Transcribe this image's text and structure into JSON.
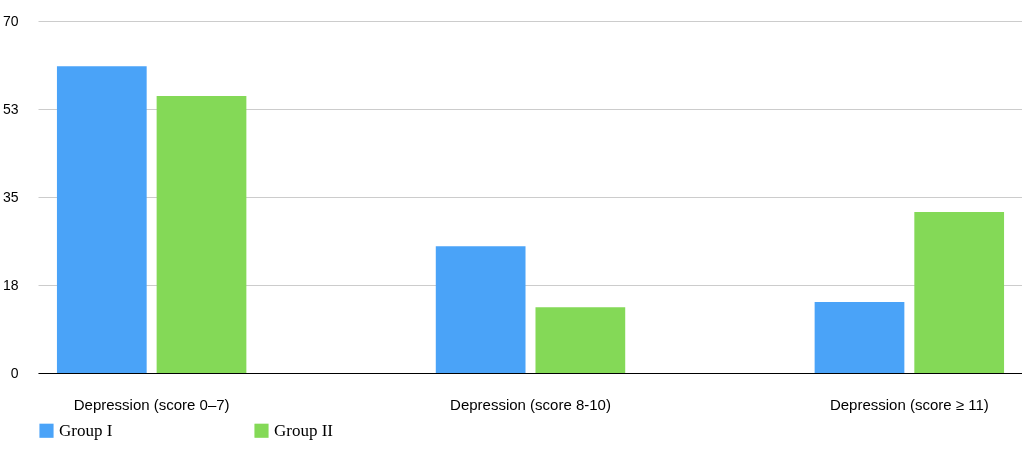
{
  "chart_data": {
    "type": "bar",
    "categories": [
      "Depression (score 0–7)",
      "Depression (score 8-10)",
      "Depression (score ≥ 11)"
    ],
    "series": [
      {
        "name": "Group I",
        "color": "#4aa3f8",
        "values": [
          61,
          25.2,
          14.1
        ]
      },
      {
        "name": "Group II",
        "color": "#84d957",
        "values": [
          55.1,
          13.1,
          32
        ]
      }
    ],
    "ylim": [
      0,
      70
    ],
    "yticks": [
      0,
      {
        "value": 17.5,
        "label": "18"
      },
      35,
      {
        "value": 52.5,
        "label": "53"
      },
      70
    ],
    "grid": "y",
    "legend": "bottom"
  }
}
